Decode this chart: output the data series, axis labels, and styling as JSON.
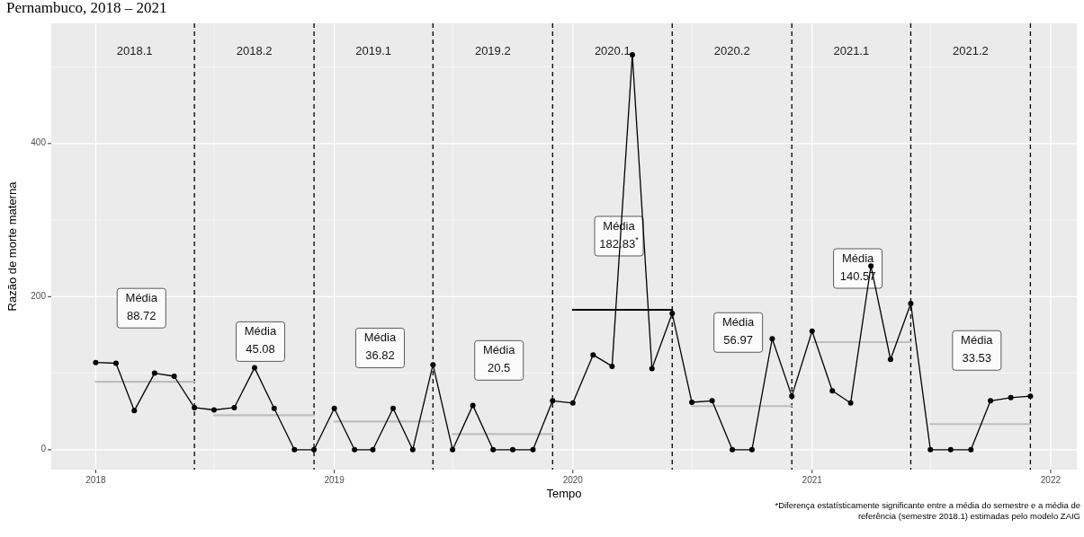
{
  "chart_data": {
    "type": "line",
    "title": "Pernambuco, 2018 – 2021",
    "xlabel": "Tempo",
    "ylabel": "Razão de morte materna",
    "xlim": [
      "2017-10-25",
      "2022-02-10"
    ],
    "ylim": [
      -26,
      557
    ],
    "xticks": [
      {
        "value": "2018",
        "label": "2018"
      },
      {
        "value": "2018-07",
        "label": null
      },
      {
        "value": "2019",
        "label": "2019"
      },
      {
        "value": "2019-07",
        "label": null
      },
      {
        "value": "2020",
        "label": "2020"
      },
      {
        "value": "2020-07",
        "label": null
      },
      {
        "value": "2021",
        "label": "2021"
      },
      {
        "value": "2021-07",
        "label": null
      },
      {
        "value": "2022",
        "label": "2022"
      }
    ],
    "yticks": [
      0,
      {
        "value": 100,
        "label": null
      },
      200,
      {
        "value": 300,
        "label": null
      },
      400,
      {
        "value": 500,
        "label": null
      }
    ],
    "grid": true,
    "series": [
      {
        "color": "#000000",
        "marker": "circle",
        "x": [
          "2018-01",
          "2018-02",
          "2018-03",
          "2018-04",
          "2018-05",
          "2018-06",
          "2018-07",
          "2018-08",
          "2018-09",
          "2018-10",
          "2018-11",
          "2018-12",
          "2019-01",
          "2019-02",
          "2019-03",
          "2019-04",
          "2019-05",
          "2019-06",
          "2019-07",
          "2019-08",
          "2019-09",
          "2019-10",
          "2019-11",
          "2019-12",
          "2020-01",
          "2020-02",
          "2020-03",
          "2020-04",
          "2020-05",
          "2020-06",
          "2020-07",
          "2020-08",
          "2020-09",
          "2020-10",
          "2020-11",
          "2020-12",
          "2021-01",
          "2021-02",
          "2021-03",
          "2021-04",
          "2021-05",
          "2021-06",
          "2021-07",
          "2021-08",
          "2021-09",
          "2021-10",
          "2021-11",
          "2021-12"
        ],
        "values": [
          114,
          113,
          51,
          100,
          96,
          55,
          52,
          55,
          107,
          54,
          0,
          0,
          54,
          0,
          0,
          54,
          0,
          111,
          0,
          58,
          0,
          0,
          0,
          64,
          61,
          124,
          109,
          516,
          106,
          178,
          62,
          64,
          0,
          0,
          145,
          70,
          155,
          77,
          61,
          240,
          118,
          191,
          0,
          0,
          0,
          64,
          68,
          70
        ]
      },
      {
        "color": "#bebebe",
        "marker": "none",
        "x": [
          "2018-01",
          "2018-06"
        ],
        "values": [
          88.72,
          88.72
        ]
      },
      {
        "color": "#bebebe",
        "marker": "none",
        "x": [
          "2018-07",
          "2018-12"
        ],
        "values": [
          45.08,
          45.08
        ]
      },
      {
        "color": "#bebebe",
        "marker": "none",
        "x": [
          "2019-01",
          "2019-06"
        ],
        "values": [
          36.82,
          36.82
        ]
      },
      {
        "color": "#bebebe",
        "marker": "none",
        "x": [
          "2019-07",
          "2019-12"
        ],
        "values": [
          20.5,
          20.5
        ]
      },
      {
        "color": "#000000",
        "marker": "none",
        "x": [
          "2020-01",
          "2020-06"
        ],
        "values": [
          182.83,
          182.83
        ]
      },
      {
        "color": "#bebebe",
        "marker": "none",
        "x": [
          "2020-07",
          "2020-12"
        ],
        "values": [
          56.97,
          56.97
        ]
      },
      {
        "color": "#bebebe",
        "marker": "none",
        "x": [
          "2021-01",
          "2021-06"
        ],
        "values": [
          140.57,
          140.57
        ]
      },
      {
        "color": "#bebebe",
        "marker": "none",
        "x": [
          "2021-07",
          "2021-12"
        ],
        "values": [
          33.53,
          33.53
        ]
      }
    ],
    "ref_lines": [
      {
        "axis": "x",
        "value": "2018-06",
        "line_style": "dashed",
        "color": "#000000"
      },
      {
        "axis": "x",
        "value": "2018-12",
        "line_style": "dashed",
        "color": "#000000"
      },
      {
        "axis": "x",
        "value": "2019-06",
        "line_style": "dashed",
        "color": "#000000"
      },
      {
        "axis": "x",
        "value": "2019-12",
        "line_style": "dashed",
        "color": "#000000"
      },
      {
        "axis": "x",
        "value": "2020-06",
        "line_style": "dashed",
        "color": "#000000"
      },
      {
        "axis": "x",
        "value": "2020-12",
        "line_style": "dashed",
        "color": "#000000"
      },
      {
        "axis": "x",
        "value": "2021-06",
        "line_style": "dashed",
        "color": "#000000"
      },
      {
        "axis": "x",
        "value": "2021-12",
        "line_style": "dashed",
        "color": "#000000"
      }
    ],
    "annotations": [
      "2018.1",
      "2018.2",
      "2019.1",
      "2019.2",
      "2020.1",
      "2020.2",
      "2021.1",
      "2021.2",
      "Média\n88.72",
      "Média\n45.08",
      "Média\n36.82",
      "Média\n20.5",
      "Média\n182.83$^{*}$",
      "Média\n56.97",
      "Média\n140.57",
      "Média\n33.53",
      "*Diferença estatísticamente significante entre a média do semestre e a média de\nreferência (semestre 2018.1) estimadas pelo modelo ZAIG"
    ]
  }
}
